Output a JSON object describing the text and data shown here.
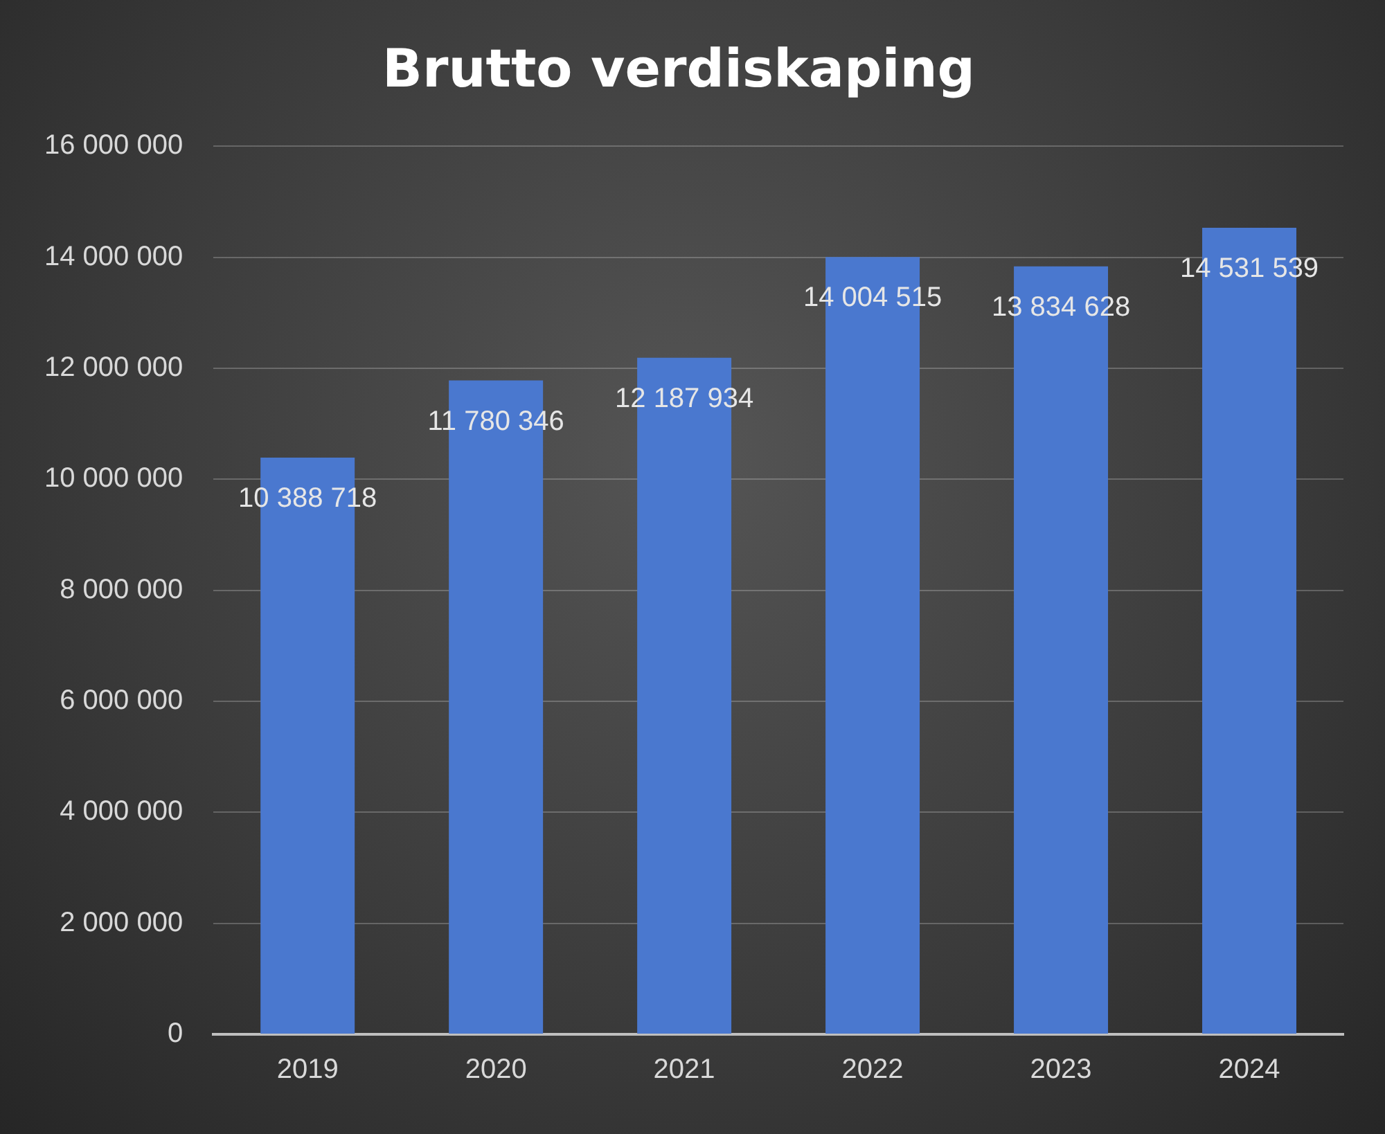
{
  "chart_data": {
    "type": "bar",
    "title": "Brutto verdiskaping",
    "categories": [
      "2019",
      "2020",
      "2021",
      "2022",
      "2023",
      "2024"
    ],
    "values": [
      10388718,
      11780346,
      12187934,
      14004515,
      13834628,
      14531539
    ],
    "value_labels": [
      "10 388 718",
      "11 780 346",
      "12 187 934",
      "14 004 515",
      "13 834 628",
      "14 531 539"
    ],
    "color": "#4a78cf",
    "ylim": [
      0,
      16000000
    ],
    "yticks": [
      {
        "value": 0,
        "label": "0"
      },
      {
        "value": 2000000,
        "label": "2 000 000"
      },
      {
        "value": 4000000,
        "label": "4 000 000"
      },
      {
        "value": 6000000,
        "label": "6 000 000"
      },
      {
        "value": 8000000,
        "label": "8 000 000"
      },
      {
        "value": 10000000,
        "label": "10 000 000"
      },
      {
        "value": 12000000,
        "label": "12 000 000"
      },
      {
        "value": 14000000,
        "label": "14 000 000"
      },
      {
        "value": 16000000,
        "label": "16 000 000"
      }
    ],
    "grid": "y",
    "legend": false
  }
}
